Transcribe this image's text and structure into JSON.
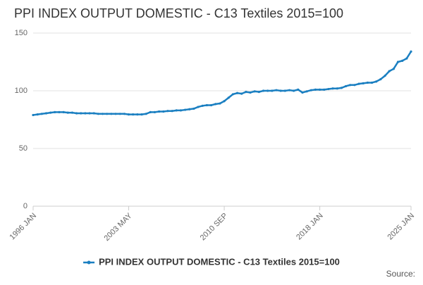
{
  "chart_data": {
    "type": "line",
    "title": "PPI INDEX OUTPUT DOMESTIC - C13 Textiles 2015=100",
    "source_label": "Source:",
    "categories": [
      "1996 JAN",
      null,
      null,
      null,
      null,
      null,
      null,
      null,
      null,
      null,
      null,
      null,
      null,
      null,
      null,
      null,
      null,
      null,
      null,
      null,
      null,
      null,
      "2003 MAY",
      null,
      null,
      null,
      null,
      null,
      null,
      null,
      null,
      null,
      null,
      null,
      null,
      null,
      null,
      null,
      null,
      null,
      null,
      null,
      null,
      null,
      "2010 SEP",
      null,
      null,
      null,
      null,
      null,
      null,
      null,
      null,
      null,
      null,
      null,
      null,
      null,
      null,
      null,
      null,
      null,
      null,
      null,
      null,
      null,
      "2018 JAN",
      null,
      null,
      null,
      null,
      null,
      null,
      null,
      null,
      null,
      null,
      null,
      null,
      null,
      null,
      null,
      null,
      null,
      null,
      null,
      null,
      "2025 JAN"
    ],
    "series": [
      {
        "name": "PPI INDEX OUTPUT DOMESTIC - C13 Textiles 2015=100",
        "color": "#1a7fc1",
        "values": [
          79,
          79.5,
          80,
          80.5,
          81,
          81.5,
          81.5,
          81.5,
          81,
          81,
          80.5,
          80.5,
          80.5,
          80.5,
          80.5,
          80,
          80,
          80,
          80,
          80,
          80,
          80,
          79.5,
          79.5,
          79.5,
          79.5,
          80,
          81.5,
          81.5,
          82,
          82,
          82.5,
          82.5,
          83,
          83,
          83.5,
          84,
          84.5,
          86,
          87,
          87.5,
          87.5,
          88.5,
          89,
          91,
          94,
          97,
          98,
          97.5,
          99,
          98.5,
          99.5,
          99,
          100,
          100,
          100,
          100.5,
          100,
          100,
          100.5,
          100,
          101,
          98.5,
          99.5,
          100.5,
          101,
          101,
          101,
          101.5,
          102,
          102,
          102.5,
          104,
          105,
          105,
          106,
          106.5,
          107,
          107,
          108,
          110,
          113,
          117,
          119,
          125,
          126,
          128,
          134
        ]
      }
    ],
    "ylim": [
      0,
      150
    ],
    "yticks": [
      0,
      50,
      100,
      150
    ],
    "grid": true,
    "legend": "bottom"
  }
}
